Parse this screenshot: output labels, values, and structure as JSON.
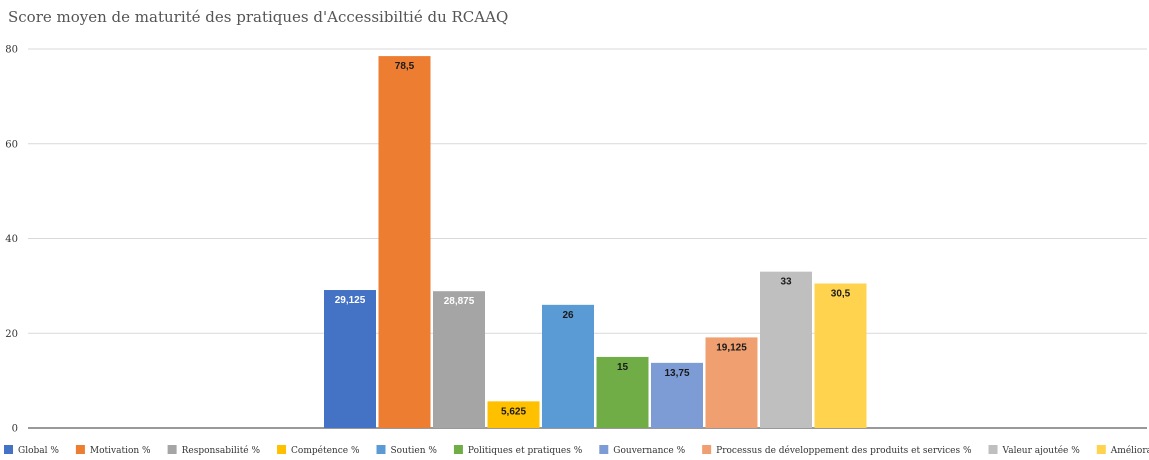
{
  "chart_data": {
    "type": "bar",
    "title": "Score moyen de maturité des pratiques d'Accessibiltié du RCAAQ",
    "xlabel": "",
    "ylabel": "",
    "ylim": [
      0,
      80
    ],
    "yticks": [
      0,
      20,
      40,
      60,
      80
    ],
    "grid": true,
    "legend_position": "bottom",
    "series": [
      {
        "name": "Global %",
        "value": 29.125,
        "label": "29,125",
        "color": "#4472c4",
        "label_color": "#ffffff"
      },
      {
        "name": "Motivation %",
        "value": 78.5,
        "label": "78,5",
        "color": "#ed7d31",
        "label_color": "#1a1a1a"
      },
      {
        "name": "Responsabilité %",
        "value": 28.875,
        "label": "28,875",
        "color": "#a5a5a5",
        "label_color": "#ffffff"
      },
      {
        "name": "Compétence %",
        "value": 5.625,
        "label": "5,625",
        "color": "#ffc000",
        "label_color": "#1a1a1a"
      },
      {
        "name": "Soutien %",
        "value": 26,
        "label": "26",
        "color": "#5b9bd5",
        "label_color": "#1a1a1a"
      },
      {
        "name": "Politiques et pratiques %",
        "value": 15,
        "label": "15",
        "color": "#70ad47",
        "label_color": "#1a1a1a"
      },
      {
        "name": "Gouvernance %",
        "value": 13.75,
        "label": "13,75",
        "color": "#7d9bd4",
        "label_color": "#1a1a1a"
      },
      {
        "name": "Processus de développement des produits et services %",
        "value": 19.125,
        "label": "19,125",
        "color": "#f0a070",
        "label_color": "#1a1a1a"
      },
      {
        "name": "Valeur ajoutée  %",
        "value": 33,
        "label": "33",
        "color": "#bfbfbf",
        "label_color": "#1a1a1a"
      },
      {
        "name": "Amélioration continue et innovation %",
        "value": 30.5,
        "label": "30,5",
        "color": "#ffd34d",
        "label_color": "#1a1a1a"
      }
    ]
  }
}
